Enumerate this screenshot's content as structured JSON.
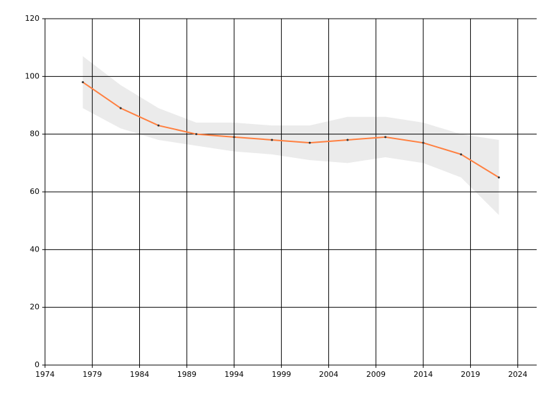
{
  "chart_data": {
    "type": "line",
    "x": [
      1978,
      1982,
      1986,
      1990,
      1994,
      1998,
      2002,
      2006,
      2010,
      2014,
      2018,
      2022
    ],
    "series": [
      {
        "color": "#ff7f3f",
        "values": [
          98,
          89,
          83,
          80,
          79,
          78,
          77,
          78,
          79,
          77,
          73,
          65
        ]
      }
    ],
    "band": {
      "color": "#ebebeb",
      "upper": [
        107,
        97,
        89,
        84,
        84,
        83,
        83,
        86,
        86,
        84,
        80,
        78
      ],
      "lower": [
        89,
        82,
        78,
        76,
        74,
        73,
        71,
        70,
        72,
        70,
        65,
        52
      ]
    },
    "point_color": "#333333",
    "xlim": [
      1974,
      2026
    ],
    "xticks": [
      1974,
      1979,
      1984,
      1989,
      1994,
      1999,
      2004,
      2009,
      2014,
      2019,
      2024
    ],
    "ylim": [
      0,
      120
    ],
    "yticks": [
      0,
      20,
      40,
      60,
      80,
      100,
      120
    ],
    "grid": true
  }
}
